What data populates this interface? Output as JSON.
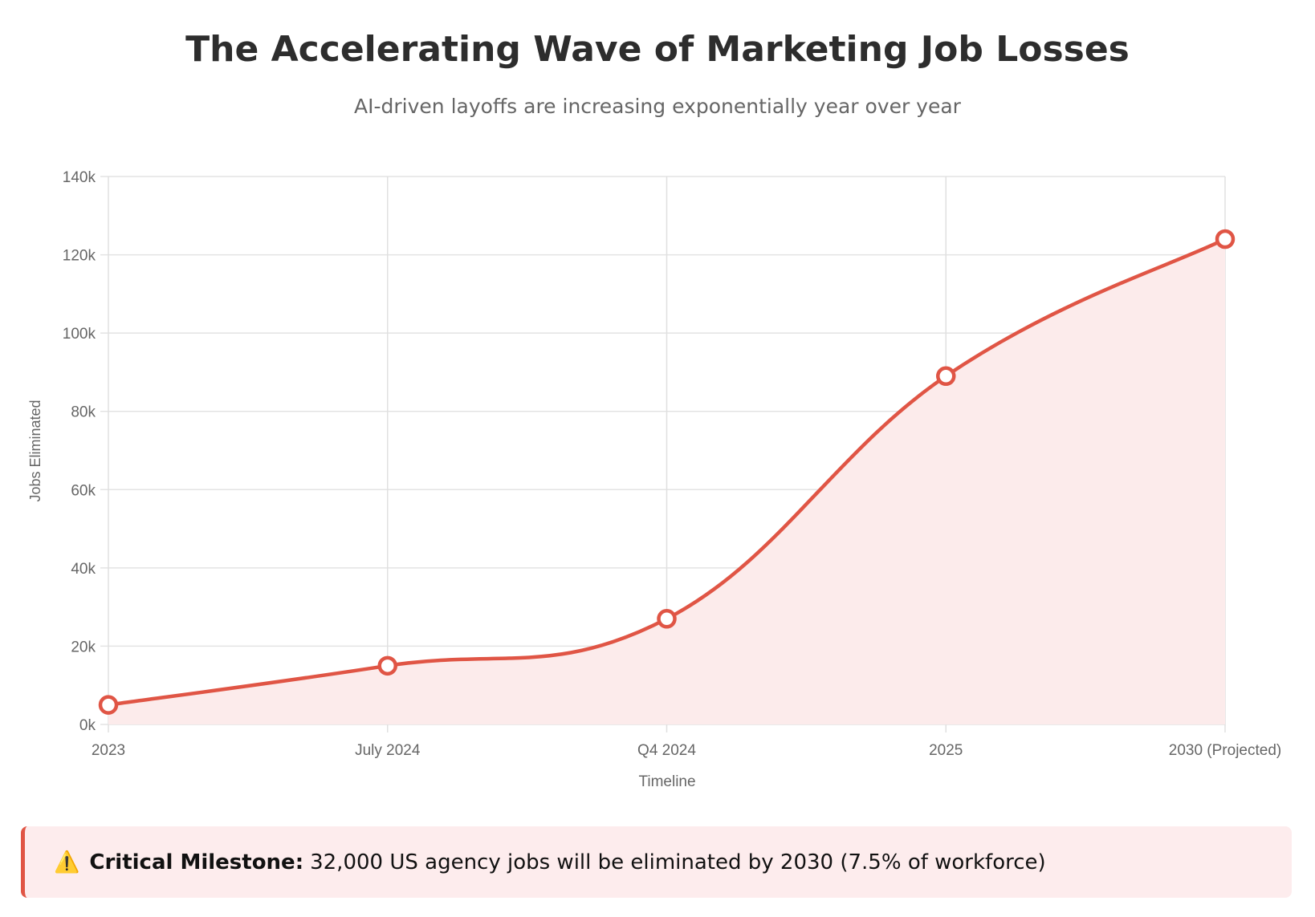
{
  "chart_data": {
    "type": "line",
    "title": "The Accelerating Wave of Marketing Job Losses",
    "subtitle": "AI-driven layoffs are increasing exponentially year over year",
    "xlabel": "Timeline",
    "ylabel": "Jobs Eliminated",
    "categories": [
      "2023",
      "July 2024",
      "Q4 2024",
      "2025",
      "2030 (Projected)"
    ],
    "values": [
      5000,
      15000,
      27000,
      89000,
      124000
    ],
    "ylim": [
      0,
      140000
    ],
    "yticks": [
      0,
      20000,
      40000,
      60000,
      80000,
      100000,
      120000,
      140000
    ],
    "ytick_labels": [
      "0k",
      "20k",
      "40k",
      "60k",
      "80k",
      "100k",
      "120k",
      "140k"
    ],
    "grid": true,
    "fill": true,
    "colors": {
      "line": "#e05545",
      "fill": "#fcebeb"
    }
  },
  "alert": {
    "icon": "warning-icon",
    "icon_glyph": "⚠️",
    "label": "Critical Milestone:",
    "text": "32,000 US agency jobs will be eliminated by 2030 (7.5% of workforce)"
  }
}
